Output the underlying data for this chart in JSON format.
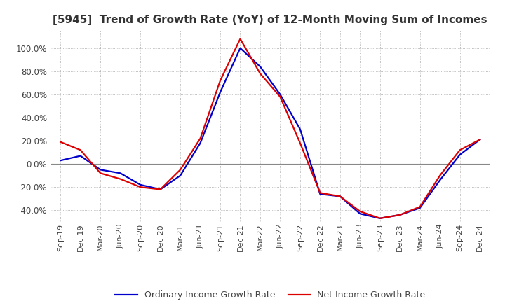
{
  "title": "[5945]  Trend of Growth Rate (YoY) of 12-Month Moving Sum of Incomes",
  "title_fontsize": 11,
  "ylim": [
    -50,
    115
  ],
  "yticks": [
    -40,
    -20,
    0,
    20,
    40,
    60,
    80,
    100
  ],
  "background_color": "#ffffff",
  "grid_color": "#aaaaaa",
  "ordinary_color": "#0000cc",
  "net_color": "#dd0000",
  "legend_labels": [
    "Ordinary Income Growth Rate",
    "Net Income Growth Rate"
  ],
  "x_labels": [
    "Sep-19",
    "Dec-19",
    "Mar-20",
    "Jun-20",
    "Sep-20",
    "Dec-20",
    "Mar-21",
    "Jun-21",
    "Sep-21",
    "Dec-21",
    "Mar-22",
    "Jun-22",
    "Sep-22",
    "Dec-22",
    "Mar-23",
    "Jun-23",
    "Sep-23",
    "Dec-23",
    "Mar-24",
    "Jun-24",
    "Sep-24",
    "Dec-24"
  ],
  "ordinary_income": [
    3.0,
    7.0,
    -5.0,
    -8.0,
    -18.0,
    -22.0,
    -10.0,
    18.0,
    62.0,
    100.0,
    84.0,
    60.0,
    30.0,
    -26.0,
    -28.0,
    -43.0,
    -47.0,
    -44.0,
    -38.0,
    -14.0,
    8.0,
    21.0
  ],
  "net_income": [
    19.0,
    12.0,
    -8.0,
    -13.0,
    -20.0,
    -22.0,
    -5.0,
    22.0,
    72.0,
    108.0,
    78.0,
    58.0,
    18.0,
    -25.0,
    -28.0,
    -41.0,
    -47.0,
    -44.0,
    -37.0,
    -10.0,
    12.0,
    21.0
  ]
}
